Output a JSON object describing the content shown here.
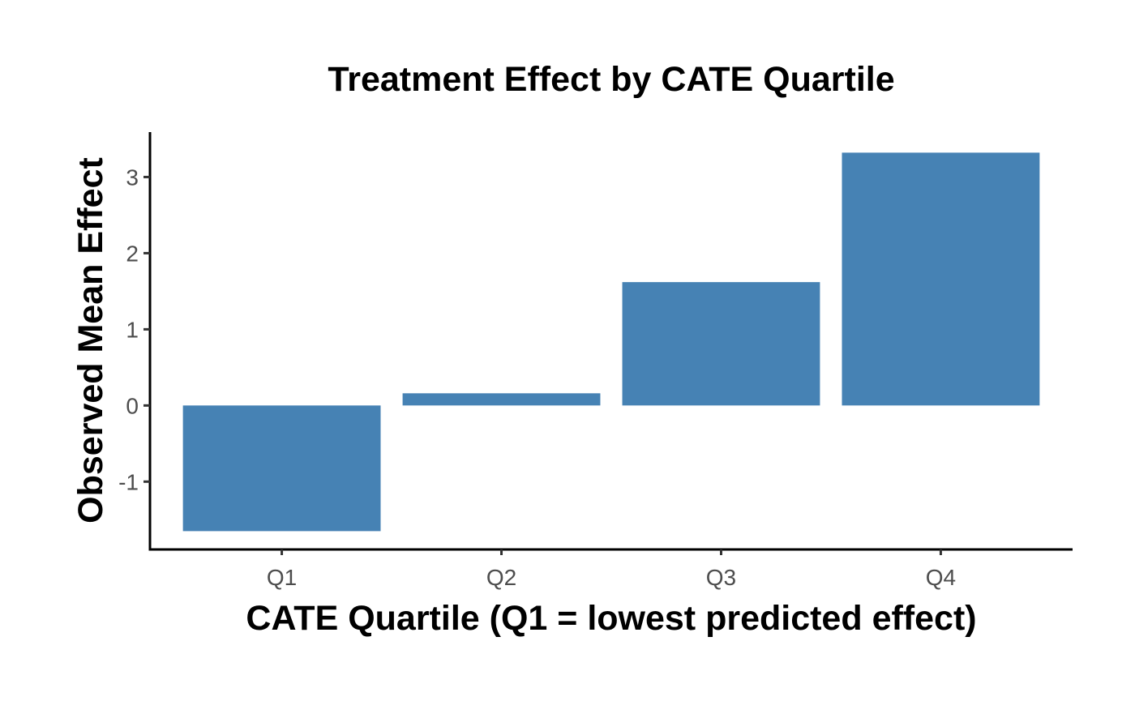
{
  "chart_data": {
    "type": "bar",
    "title": "Treatment Effect by CATE Quartile",
    "xlabel": "CATE Quartile (Q1 = lowest predicted effect)",
    "ylabel": "Observed Mean Effect",
    "categories": [
      "Q1",
      "Q2",
      "Q3",
      "Q4"
    ],
    "values": [
      -1.65,
      0.16,
      1.62,
      3.32
    ],
    "yticks": [
      -1,
      0,
      1,
      2,
      3
    ],
    "ylim": [
      -1.88,
      3.59
    ],
    "grid": false,
    "legend": "none",
    "bar_color": "#4682B4"
  }
}
